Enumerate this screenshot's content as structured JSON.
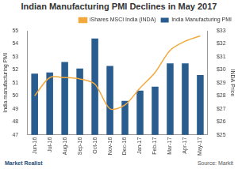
{
  "chart_data": {
    "type": "bar",
    "title": "Indian Manufacturing PMI Declines in May 2017",
    "y_label": "India manufacturing PMI",
    "y2_label": "INDA Price",
    "annotations": [
      "Market Realist",
      "Source: Markit"
    ],
    "categories": [
      "Jun-16",
      "Jul-16",
      "Aug-16",
      "Sep-16",
      "Oct-16",
      "Nov-16",
      "Dec-16",
      "Jan-17",
      "Feb-17",
      "Mar-17",
      "Apr-17",
      "May-17"
    ],
    "series": [
      {
        "name": "India Manufacturing PMI",
        "type": "bar",
        "color": "#2a5d8f",
        "values": [
          51.7,
          51.8,
          52.6,
          52.1,
          54.4,
          52.3,
          49.6,
          50.4,
          50.7,
          52.5,
          52.5,
          51.6
        ]
      },
      {
        "name": "iShares MSCI India (INDA)",
        "type": "line",
        "color": "#f2a93b",
        "axis": "y2",
        "values": [
          28.0,
          29.4,
          29.4,
          29.3,
          28.9,
          27.0,
          27.3,
          28.6,
          29.8,
          31.5,
          32.2,
          32.6
        ]
      }
    ],
    "ylim": [
      47,
      55
    ],
    "yticks": [
      47,
      48,
      49,
      50,
      51,
      52,
      53,
      54,
      55
    ],
    "y2lim": [
      25,
      33
    ],
    "y2ticks": [
      {
        "value": 25,
        "label": "$25"
      },
      {
        "value": 26,
        "label": "$26"
      },
      {
        "value": 27,
        "label": "$27"
      },
      {
        "value": 28,
        "label": "$28"
      },
      {
        "value": 29,
        "label": "$29"
      },
      {
        "value": 30,
        "label": "$30"
      },
      {
        "value": 31,
        "label": "$31"
      },
      {
        "value": 32,
        "label": "$32"
      },
      {
        "value": 33,
        "label": "$33"
      }
    ],
    "legend": "top",
    "grid": false
  }
}
